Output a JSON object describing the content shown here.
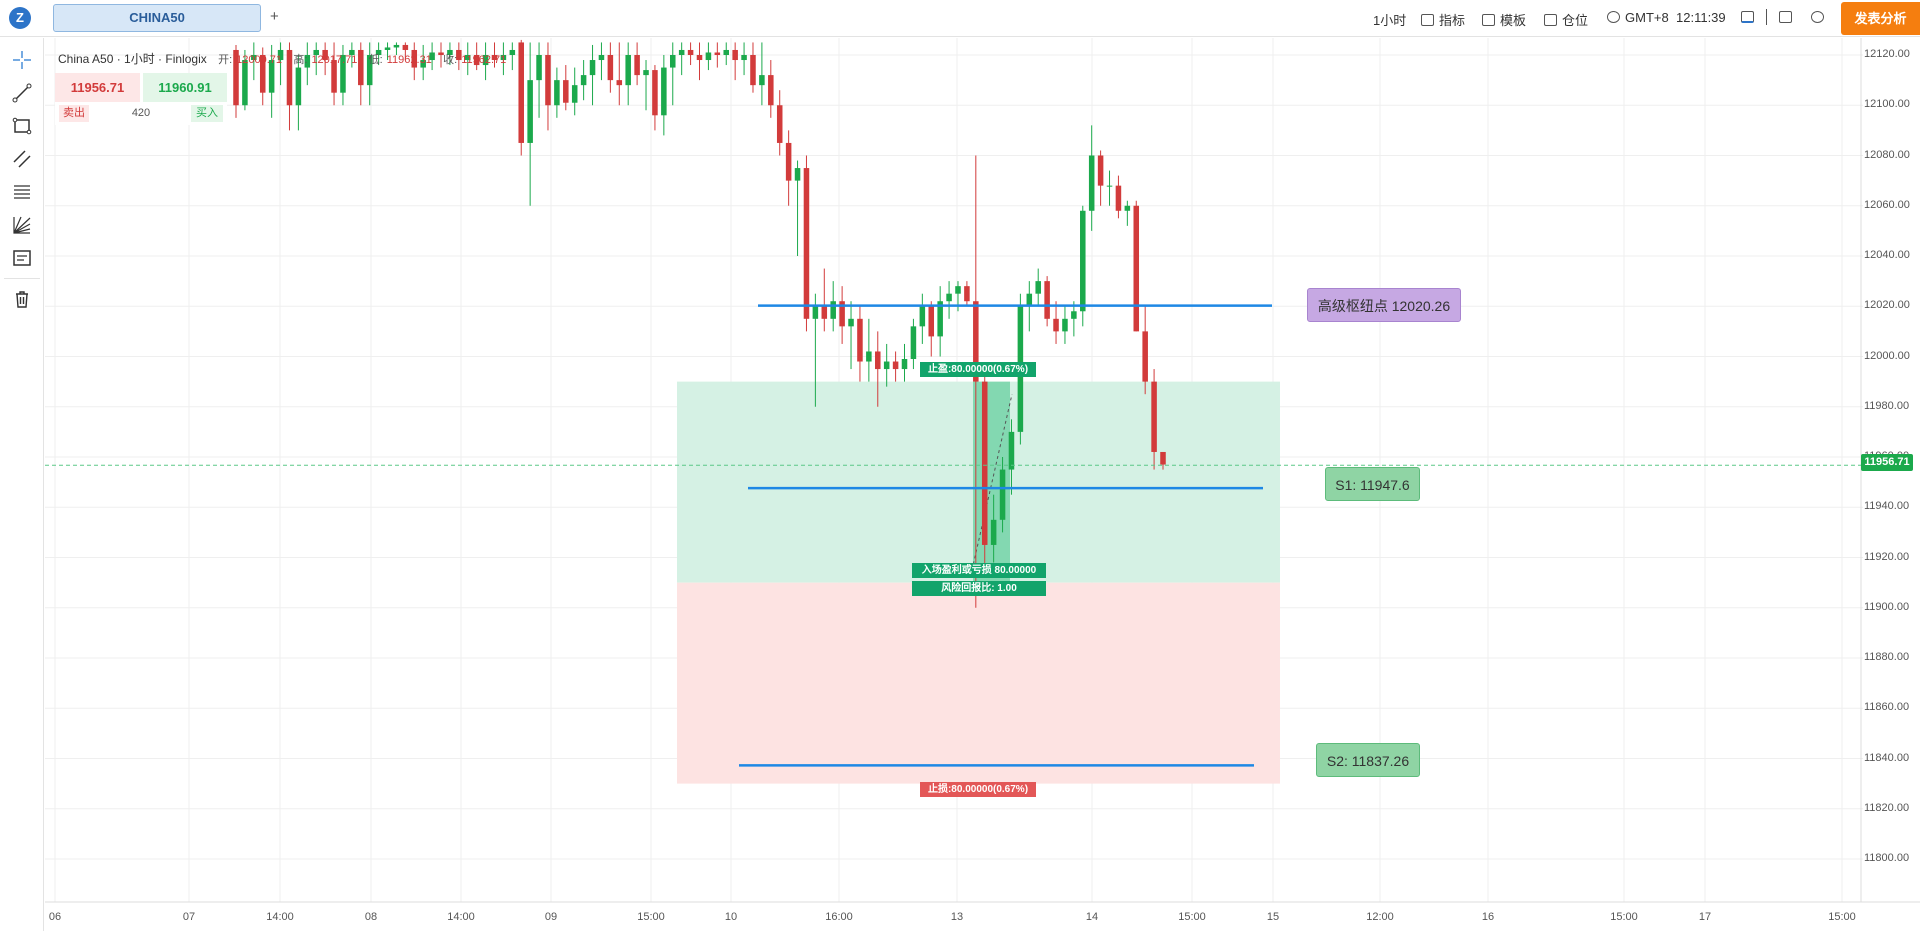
{
  "header": {
    "symbol_tab": "CHINA50",
    "add_tab": "+",
    "timeframe": "1小时",
    "indicators": "指标",
    "templates": "模板",
    "positions": "仓位",
    "timezone": "GMT+8",
    "clock": "12:11:39",
    "publish": "发表分析"
  },
  "legend": {
    "title": "China A50 · 1小时 · Finlogix",
    "open_label": "开:",
    "open": "12000.71",
    "high_label": "高:",
    "high": "12017.71",
    "low_label": "低:",
    "low": "11962.31",
    "close_label": "收:",
    "close": "11962.71"
  },
  "trade": {
    "sell_price": "11956.71",
    "buy_price": "11960.91",
    "sell_label": "卖出",
    "buy_label": "买入",
    "quantity": "420"
  },
  "levels": {
    "pivot": "高级枢纽点 12020.26",
    "s1": "S1: 11947.6",
    "s2": "S2: 11837.26"
  },
  "position_tool": {
    "take_profit": "止盈:80.00000(0.67%)",
    "entry_line1": "入场盈利或亏损 80.00000",
    "entry_line2": "风险回报比: 1.00",
    "stop_loss": "止损:80.00000(0.67%)"
  },
  "current_price": "11956.71",
  "colors": {
    "up": "#1ba94c",
    "down": "#d23b3b",
    "level_line": "#1e88e5",
    "publish": "#f57e0f"
  },
  "icons": [
    "crosshair-icon",
    "trend-line-icon",
    "rectangle-icon",
    "parallel-channel-icon",
    "fib-lines-icon",
    "gann-fan-icon",
    "text-note-icon",
    "trash-icon"
  ],
  "chart_data": {
    "type": "candlestick",
    "title": "China A50 · 1小时 · Finlogix",
    "ylim": [
      11790,
      12125
    ],
    "y_ticks": [
      12120,
      12100,
      12080,
      12060,
      12040,
      12020,
      12000,
      11980,
      11960,
      11940,
      11920,
      11900,
      11880,
      11860,
      11840,
      11820,
      11800
    ],
    "y_tick_labels": [
      "12120.00",
      "12100.00",
      "12080.00",
      "12060.00",
      "12040.00",
      "12020.00",
      "12000.00",
      "11980.00",
      "11960.00",
      "11940.00",
      "11920.00",
      "11900.00",
      "11880.00",
      "11860.00",
      "11840.00",
      "11820.00",
      "11800.00"
    ],
    "x_tick_labels": [
      "06",
      "07",
      "14:00",
      "08",
      "14:00",
      "09",
      "15:00",
      "10",
      "16:00",
      "13",
      "14",
      "15:00",
      "15",
      "12:00",
      "16",
      "15:00",
      "17",
      "15:00"
    ],
    "grid": true,
    "horizontal_levels": [
      12020.26,
      11947.6,
      11837.26
    ],
    "current_price": 11956.71,
    "candles": [
      [
        12122,
        12124,
        12095,
        12100
      ],
      [
        12100,
        12122,
        12098,
        12118
      ],
      [
        12118,
        12125,
        12110,
        12120
      ],
      [
        12120,
        12123,
        12100,
        12105
      ],
      [
        12105,
        12124,
        12095,
        12118
      ],
      [
        12118,
        12125,
        12108,
        12122
      ],
      [
        12122,
        12125,
        12090,
        12100
      ],
      [
        12100,
        12120,
        12090,
        12115
      ],
      [
        12115,
        12125,
        12108,
        12120
      ],
      [
        12120,
        12125,
        12112,
        12122
      ],
      [
        12122,
        12125,
        12112,
        12118
      ],
      [
        12118,
        12125,
        12100,
        12105
      ],
      [
        12105,
        12124,
        12100,
        12120
      ],
      [
        12120,
        12125,
        12115,
        12122
      ],
      [
        12122,
        12125,
        12100,
        12108
      ],
      [
        12108,
        12125,
        12100,
        12120
      ],
      [
        12120,
        12125,
        12116,
        12122
      ],
      [
        12122,
        12125,
        12118,
        12123
      ],
      [
        12123,
        12125,
        12120,
        12124
      ],
      [
        12124,
        12125,
        12118,
        12122
      ],
      [
        12122,
        12125,
        12110,
        12115
      ],
      [
        12115,
        12124,
        12110,
        12118
      ],
      [
        12118,
        12125,
        12114,
        12121
      ],
      [
        12121,
        12125,
        12115,
        12120
      ],
      [
        12120,
        12125,
        12116,
        12122
      ],
      [
        12122,
        12125,
        12114,
        12118
      ],
      [
        12118,
        12125,
        12112,
        12120
      ],
      [
        12120,
        12125,
        12114,
        12116
      ],
      [
        12116,
        12125,
        12110,
        12120
      ],
      [
        12120,
        12125,
        12115,
        12118
      ],
      [
        12118,
        12125,
        12112,
        12120
      ],
      [
        12120,
        12125,
        12114,
        12122
      ],
      [
        12125,
        12126,
        12080,
        12085
      ],
      [
        12085,
        12125,
        12060,
        12110
      ],
      [
        12110,
        12125,
        12095,
        12120
      ],
      [
        12120,
        12125,
        12090,
        12100
      ],
      [
        12100,
        12115,
        12095,
        12110
      ],
      [
        12110,
        12116,
        12098,
        12101
      ],
      [
        12101,
        12115,
        12096,
        12108
      ],
      [
        12108,
        12118,
        12102,
        12112
      ],
      [
        12112,
        12124,
        12100,
        12118
      ],
      [
        12118,
        12125,
        12110,
        12120
      ],
      [
        12120,
        12125,
        12105,
        12110
      ],
      [
        12110,
        12125,
        12100,
        12108
      ],
      [
        12108,
        12125,
        12100,
        12120
      ],
      [
        12120,
        12125,
        12108,
        12112
      ],
      [
        12112,
        12118,
        12098,
        12114
      ],
      [
        12114,
        12116,
        12090,
        12096
      ],
      [
        12096,
        12120,
        12088,
        12115
      ],
      [
        12115,
        12125,
        12100,
        12120
      ],
      [
        12120,
        12125,
        12112,
        12122
      ],
      [
        12122,
        12125,
        12116,
        12120
      ],
      [
        12120,
        12125,
        12110,
        12118
      ],
      [
        12118,
        12125,
        12114,
        12121
      ],
      [
        12121,
        12125,
        12115,
        12120
      ],
      [
        12120,
        12125,
        12116,
        12122
      ],
      [
        12122,
        12125,
        12110,
        12118
      ],
      [
        12118,
        12125,
        12112,
        12120
      ],
      [
        12120,
        12125,
        12105,
        12108
      ],
      [
        12108,
        12125,
        12100,
        12112
      ],
      [
        12112,
        12118,
        12095,
        12100
      ],
      [
        12100,
        12106,
        12080,
        12085
      ],
      [
        12085,
        12090,
        12060,
        12070
      ],
      [
        12070,
        12078,
        12040,
        12075
      ],
      [
        12075,
        12080,
        12010,
        12015
      ],
      [
        12015,
        12025,
        11980,
        12020
      ],
      [
        12020,
        12035,
        12010,
        12015
      ],
      [
        12015,
        12030,
        12010,
        12022
      ],
      [
        12022,
        12028,
        12005,
        12012
      ],
      [
        12012,
        12022,
        11995,
        12015
      ],
      [
        12015,
        12020,
        11990,
        11998
      ],
      [
        11998,
        12015,
        11990,
        12002
      ],
      [
        12002,
        12010,
        11980,
        11995
      ],
      [
        11995,
        12005,
        11988,
        11998
      ],
      [
        11998,
        12002,
        11990,
        11995
      ],
      [
        11995,
        12005,
        11990,
        11999
      ],
      [
        11999,
        12015,
        11995,
        12012
      ],
      [
        12012,
        12025,
        12005,
        12020
      ],
      [
        12020,
        12022,
        12000,
        12008
      ],
      [
        12008,
        12028,
        12000,
        12022
      ],
      [
        12022,
        12030,
        12015,
        12025
      ],
      [
        12025,
        12030,
        12018,
        12028
      ],
      [
        12028,
        12030,
        12020,
        12022
      ],
      [
        12022,
        12080,
        11900,
        11990
      ],
      [
        11990,
        11995,
        11915,
        11925
      ],
      [
        11925,
        11945,
        11918,
        11935
      ],
      [
        11935,
        11960,
        11930,
        11955
      ],
      [
        11955,
        11975,
        11945,
        11970
      ],
      [
        11970,
        12025,
        11965,
        12020
      ],
      [
        12020,
        12030,
        12010,
        12025
      ],
      [
        12025,
        12035,
        12020,
        12030
      ],
      [
        12030,
        12032,
        12012,
        12015
      ],
      [
        12015,
        12022,
        12005,
        12010
      ],
      [
        12010,
        12020,
        12005,
        12015
      ],
      [
        12015,
        12022,
        12008,
        12018
      ],
      [
        12018,
        12060,
        12012,
        12058
      ],
      [
        12058,
        12092,
        12050,
        12080
      ],
      [
        12080,
        12082,
        12060,
        12068
      ],
      [
        12068,
        12074,
        12060,
        12068
      ],
      [
        12068,
        12072,
        12055,
        12058
      ],
      [
        12058,
        12062,
        12052,
        12060
      ],
      [
        12060,
        12062,
        12010,
        12010
      ],
      [
        12010,
        12020,
        11985,
        11990
      ],
      [
        11990,
        11995,
        11955,
        11962
      ],
      [
        11962,
        11962,
        11955,
        11957
      ]
    ]
  }
}
